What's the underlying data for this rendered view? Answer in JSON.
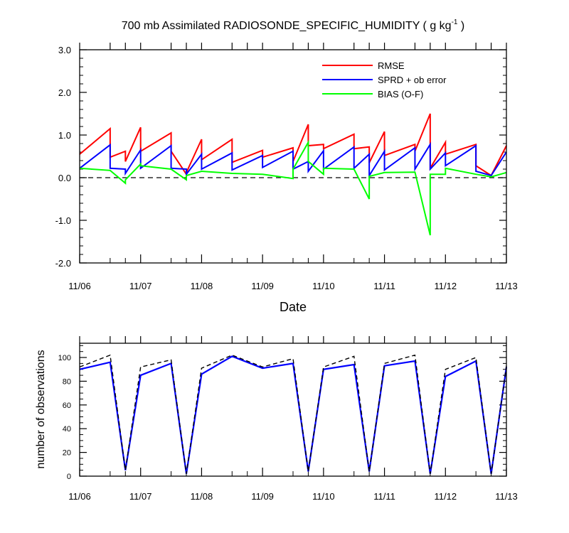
{
  "chart_data": [
    {
      "type": "line",
      "title": "700 mb Assimilated RADIOSONDE_SPECIFIC_HUMIDITY ( g kg",
      "title_sup": "-1",
      "title_end": " )",
      "xlabel": "Date",
      "ylabel": "",
      "xlim": [
        0,
        7
      ],
      "ylim": [
        -2.0,
        3.0
      ],
      "yticks": [
        -2.0,
        -1.0,
        0.0,
        1.0,
        2.0,
        3.0
      ],
      "ytick_labels": [
        "-2.0",
        "-1.0",
        "0.0",
        "1.0",
        "2.0",
        "3.0"
      ],
      "xtick_labels": [
        "11/06",
        "11/07",
        "11/08",
        "11/09",
        "11/10",
        "11/11",
        "11/12",
        "11/13"
      ],
      "legend_position": "top-right",
      "zero_line": "dashed",
      "colors": {
        "rmse": "#ff0000",
        "sprd": "#0000ff",
        "bias": "#00ff00"
      },
      "series": [
        {
          "name": "RMSE",
          "x": [
            0,
            0.5,
            0.5,
            0.75,
            0.75,
            1.0,
            1.0,
            1.5,
            1.5,
            1.75,
            1.75,
            2.0,
            2.0,
            2.5,
            2.5,
            3.0,
            3.0,
            3.5,
            3.5,
            3.75,
            3.75,
            4.0,
            4.0,
            4.5,
            4.5,
            4.75,
            4.75,
            5.0,
            5.0,
            5.5,
            5.5,
            5.75,
            5.75,
            6.0,
            6.0,
            6.5,
            6.5,
            6.75,
            6.75,
            7.0
          ],
          "values": [
            0.55,
            1.15,
            0.48,
            0.62,
            0.38,
            1.18,
            0.62,
            1.05,
            0.62,
            0.08,
            0.12,
            0.9,
            0.42,
            0.9,
            0.36,
            0.64,
            0.48,
            0.7,
            0.38,
            1.25,
            0.75,
            0.78,
            0.68,
            1.02,
            0.68,
            0.72,
            0.35,
            1.08,
            0.52,
            0.78,
            0.62,
            1.5,
            0.22,
            0.83,
            0.55,
            0.78,
            0.28,
            0.05,
            0.05,
            0.75
          ]
        },
        {
          "name": "SPRD + ob error",
          "x": [
            0,
            0.5,
            0.5,
            0.75,
            0.75,
            1.0,
            1.0,
            1.5,
            1.5,
            1.75,
            1.75,
            2.0,
            2.0,
            2.5,
            2.5,
            3.0,
            3.0,
            3.5,
            3.5,
            3.75,
            3.75,
            4.0,
            4.0,
            4.5,
            4.5,
            4.75,
            4.75,
            5.0,
            5.0,
            5.5,
            5.5,
            5.75,
            5.75,
            6.0,
            6.0,
            6.5,
            6.5,
            6.75,
            6.75,
            7.0
          ],
          "values": [
            0.22,
            0.77,
            0.22,
            0.2,
            0.1,
            0.65,
            0.22,
            0.75,
            0.22,
            0.2,
            0.08,
            0.55,
            0.2,
            0.58,
            0.18,
            0.52,
            0.24,
            0.62,
            0.2,
            0.38,
            0.15,
            0.63,
            0.2,
            0.72,
            0.22,
            0.55,
            0.05,
            0.62,
            0.18,
            0.7,
            0.2,
            0.78,
            0.2,
            0.58,
            0.28,
            0.75,
            0.15,
            0.05,
            0.05,
            0.6
          ]
        },
        {
          "name": "BIAS (O-F)",
          "x": [
            0,
            0.5,
            0.5,
            0.75,
            0.75,
            1.0,
            1.0,
            1.5,
            1.5,
            1.75,
            1.75,
            2.0,
            2.0,
            2.5,
            2.5,
            3.0,
            3.0,
            3.5,
            3.5,
            3.75,
            3.75,
            4.0,
            4.0,
            4.5,
            4.5,
            4.75,
            4.75,
            5.0,
            5.0,
            5.5,
            5.5,
            5.75,
            5.75,
            6.0,
            6.0,
            6.5,
            6.5,
            6.75,
            6.75,
            7.0
          ],
          "values": [
            0.22,
            0.17,
            0.17,
            -0.13,
            -0.05,
            0.32,
            0.28,
            0.2,
            0.2,
            -0.05,
            0.05,
            0.15,
            0.15,
            0.1,
            0.1,
            0.08,
            0.08,
            -0.02,
            0.2,
            0.83,
            0.38,
            0.08,
            0.22,
            0.2,
            0.2,
            -0.5,
            0.03,
            0.12,
            0.12,
            0.13,
            0.13,
            -1.35,
            0.08,
            0.08,
            0.22,
            0.08,
            0.08,
            0.02,
            0.02,
            0.12
          ]
        }
      ]
    },
    {
      "type": "line",
      "title": "",
      "xlabel": "",
      "ylabel": "number of observations",
      "xlim": [
        0,
        7
      ],
      "ylim": [
        0,
        112
      ],
      "yticks": [
        0,
        20,
        40,
        60,
        80,
        100
      ],
      "ytick_labels": [
        "0",
        "20",
        "40",
        "60",
        "80",
        "100"
      ],
      "xtick_labels": [
        "11/06",
        "11/07",
        "11/08",
        "11/09",
        "11/10",
        "11/11",
        "11/12",
        "11/13"
      ],
      "colors": {
        "used": "#0000ff",
        "possible": "#000000"
      },
      "series": [
        {
          "line_style": "solid",
          "x": [
            0,
            0.5,
            0.75,
            1.0,
            1.5,
            1.75,
            2.0,
            2.5,
            3.0,
            3.5,
            3.75,
            4.0,
            4.5,
            4.75,
            5.0,
            5.5,
            5.75,
            6.0,
            6.5,
            6.75,
            7.0
          ],
          "values": [
            90,
            96,
            5,
            85,
            95,
            2,
            86,
            101,
            91,
            95,
            4,
            90,
            94,
            4,
            93,
            97,
            2,
            84,
            97,
            2,
            92
          ]
        },
        {
          "line_style": "dashed",
          "x": [
            0,
            0.5,
            0.75,
            1.0,
            1.5,
            1.75,
            2.0,
            2.5,
            3.0,
            3.5,
            3.75,
            4.0,
            4.5,
            4.75,
            5.0,
            5.5,
            5.75,
            6.0,
            6.5,
            6.75,
            7.0
          ],
          "values": [
            92,
            102,
            5,
            92,
            98,
            2,
            91,
            102,
            92,
            99,
            4,
            92,
            101,
            4,
            95,
            102,
            2,
            90,
            100,
            2,
            93
          ]
        }
      ]
    }
  ]
}
